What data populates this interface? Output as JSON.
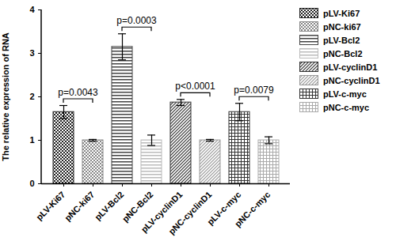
{
  "chart_data": {
    "type": "bar",
    "y_label": "The relative expression of RNA",
    "categories": [
      "pLV-Ki67",
      "pNC-ki67",
      "pLV-Bcl2",
      "pNC-Bcl2",
      "pLV-cyclinD1",
      "pNC-cyclinD1",
      "pLV-c-myc",
      "pNC-c-myc"
    ],
    "values": [
      1.65,
      1.0,
      3.15,
      1.0,
      1.87,
      1.0,
      1.65,
      1.0
    ],
    "errors": [
      0.15,
      0.02,
      0.3,
      0.12,
      0.07,
      0.02,
      0.2,
      0.08
    ],
    "colors": [
      "#222222",
      "#888888",
      "#444444",
      "#bbbbbb",
      "#333333",
      "#999999",
      "#333333",
      "#aaaaaa"
    ],
    "ylim": [
      0,
      4
    ],
    "yticks": [
      0,
      1,
      2,
      3,
      4
    ],
    "legend": "top-right",
    "annotations": [
      {
        "text": "p=0.0043",
        "between": [
          "pLV-Ki67",
          "pNC-ki67"
        ]
      },
      {
        "text": "p=0.0003",
        "between": [
          "pLV-Bcl2",
          "pNC-Bcl2"
        ]
      },
      {
        "text": "p<0.0001",
        "between": [
          "pLV-cyclinD1",
          "pNC-cyclinD1"
        ]
      },
      {
        "text": "p=0.0079",
        "between": [
          "pLV-c-myc",
          "pNC-c-myc"
        ]
      }
    ]
  }
}
